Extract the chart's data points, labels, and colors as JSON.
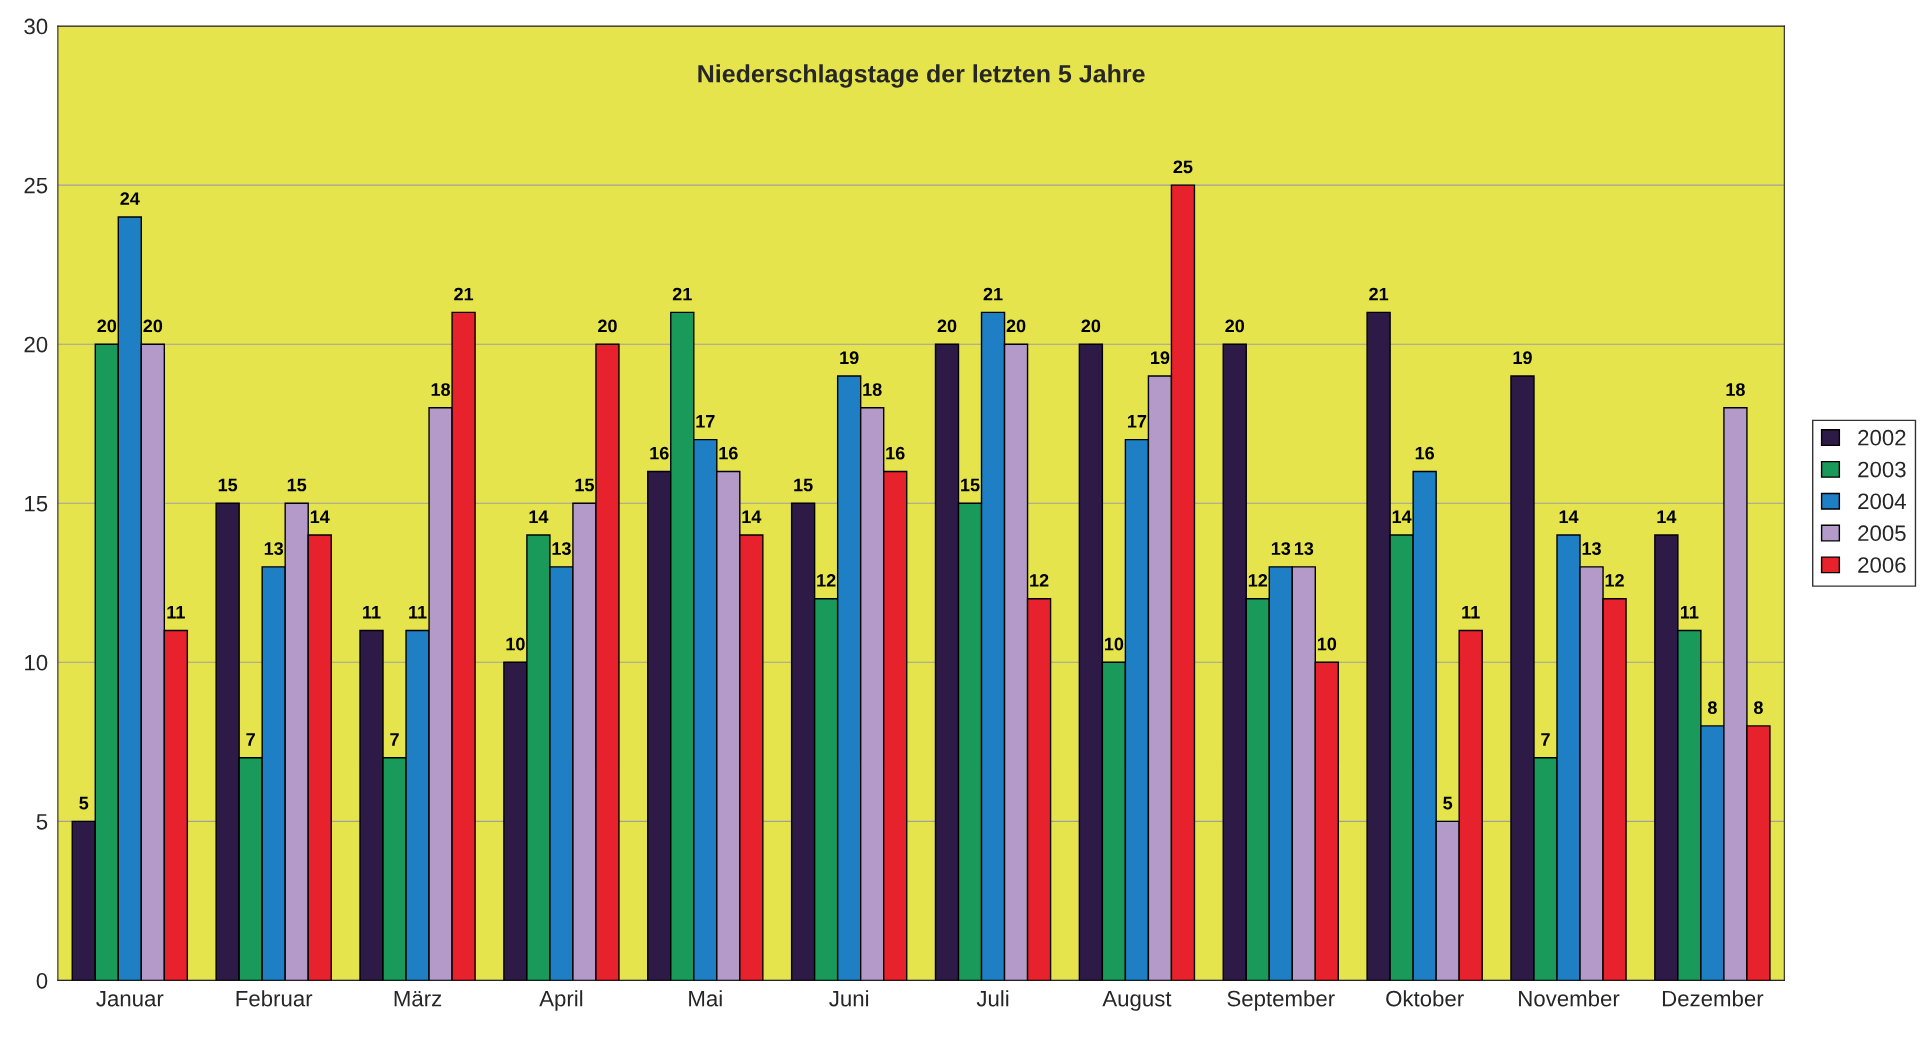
{
  "chart_data": {
    "type": "bar",
    "title": "Niederschlagstage der letzten 5 Jahre",
    "categories": [
      "Januar",
      "Februar",
      "März",
      "April",
      "Mai",
      "Juni",
      "Juli",
      "August",
      "September",
      "Oktober",
      "November",
      "Dezember"
    ],
    "series": [
      {
        "name": "2002",
        "color": "#2e1a47",
        "values": [
          5,
          15,
          11,
          10,
          16,
          15,
          20,
          20,
          20,
          21,
          19,
          14
        ]
      },
      {
        "name": "2003",
        "color": "#1a9a5a",
        "values": [
          20,
          7,
          7,
          14,
          21,
          12,
          15,
          10,
          12,
          14,
          7,
          11
        ]
      },
      {
        "name": "2004",
        "color": "#1f7fc4",
        "values": [
          24,
          13,
          11,
          13,
          17,
          19,
          21,
          17,
          13,
          16,
          14,
          8
        ]
      },
      {
        "name": "2005",
        "color": "#b49ac8",
        "values": [
          20,
          15,
          18,
          15,
          16,
          18,
          20,
          19,
          13,
          5,
          13,
          18
        ]
      },
      {
        "name": "2006",
        "color": "#e8222c",
        "values": [
          11,
          14,
          21,
          20,
          14,
          16,
          12,
          25,
          10,
          11,
          12,
          8
        ]
      }
    ],
    "ylim": [
      0,
      30
    ],
    "yticks": [
      0,
      5,
      10,
      15,
      20,
      25,
      30
    ],
    "grid": "y",
    "legend": "right",
    "data_labels": true
  }
}
